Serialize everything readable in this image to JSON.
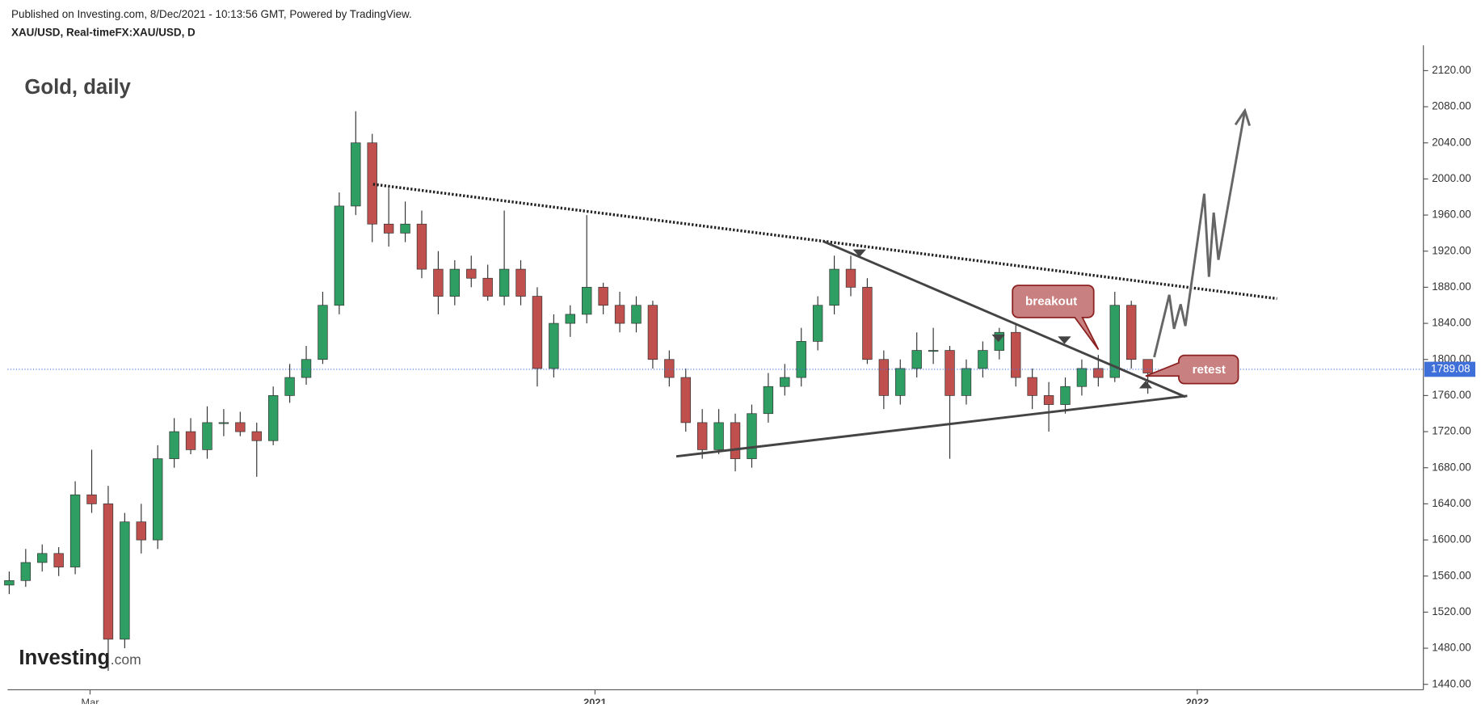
{
  "header": {
    "published": "Published on Investing.com, 8/Dec/2021 - 10:13:56 GMT, Powered by TradingView.",
    "symbol": "XAU/USD, Real-timeFX:XAU/USD, D"
  },
  "logo": {
    "brand": "Investing",
    "suffix": ".com"
  },
  "chart_data": {
    "type": "candlestick",
    "title": "Gold, daily",
    "up_color": "#2e9e62",
    "down_color": "#c0504d",
    "x": [
      -355,
      -345,
      -335,
      -325,
      -315,
      -305,
      -295,
      -285,
      -275,
      -265,
      -255,
      -245,
      -235,
      -225,
      -215,
      -205,
      -195,
      -185,
      -175,
      -165,
      -155,
      -145,
      -135,
      -125,
      -115,
      -105,
      -95,
      -85,
      -75,
      -65,
      -55,
      -45,
      -35,
      -25,
      -15,
      -5,
      5,
      15,
      25,
      35,
      45,
      55,
      65,
      75,
      85,
      95,
      105,
      115,
      125,
      135,
      145,
      155,
      165,
      175,
      185,
      195,
      205,
      215,
      225,
      235,
      245,
      255,
      265,
      275,
      285,
      295,
      305,
      315,
      325,
      335
    ],
    "open": [
      1550,
      1555,
      1575,
      1585,
      1570,
      1650,
      1640,
      1490,
      1620,
      1600,
      1690,
      1720,
      1700,
      1730,
      1730,
      1720,
      1710,
      1760,
      1780,
      1800,
      1860,
      1970,
      2040,
      1950,
      1940,
      1950,
      1900,
      1870,
      1900,
      1890,
      1870,
      1900,
      1870,
      1790,
      1840,
      1850,
      1880,
      1860,
      1840,
      1860,
      1800,
      1780,
      1730,
      1700,
      1730,
      1690,
      1740,
      1770,
      1780,
      1820,
      1860,
      1900,
      1880,
      1800,
      1760,
      1790,
      1810,
      1810,
      1760,
      1790,
      1810,
      1830,
      1780,
      1760,
      1750,
      1770,
      1790,
      1780,
      1860,
      1800
    ],
    "high": [
      1565,
      1590,
      1595,
      1592,
      1665,
      1700,
      1660,
      1630,
      1640,
      1705,
      1735,
      1735,
      1748,
      1745,
      1742,
      1730,
      1770,
      1795,
      1815,
      1875,
      1985,
      2075,
      2050,
      1990,
      1975,
      1965,
      1920,
      1910,
      1915,
      1905,
      1965,
      1910,
      1880,
      1850,
      1860,
      1960,
      1885,
      1875,
      1870,
      1865,
      1810,
      1790,
      1745,
      1745,
      1740,
      1750,
      1785,
      1795,
      1835,
      1870,
      1915,
      1915,
      1890,
      1810,
      1800,
      1830,
      1835,
      1815,
      1800,
      1820,
      1835,
      1840,
      1790,
      1775,
      1780,
      1800,
      1805,
      1875,
      1865,
      1800
    ],
    "low": [
      1540,
      1548,
      1565,
      1560,
      1562,
      1630,
      1455,
      1480,
      1585,
      1590,
      1680,
      1695,
      1690,
      1715,
      1715,
      1670,
      1705,
      1752,
      1772,
      1795,
      1850,
      1960,
      1930,
      1925,
      1930,
      1890,
      1850,
      1860,
      1880,
      1865,
      1860,
      1860,
      1770,
      1780,
      1825,
      1840,
      1850,
      1830,
      1830,
      1790,
      1770,
      1720,
      1690,
      1695,
      1676,
      1680,
      1730,
      1760,
      1770,
      1810,
      1850,
      1870,
      1795,
      1745,
      1750,
      1780,
      1795,
      1690,
      1750,
      1780,
      1800,
      1770,
      1745,
      1720,
      1740,
      1760,
      1770,
      1775,
      1790,
      1762
    ],
    "close": [
      1555,
      1575,
      1585,
      1570,
      1650,
      1640,
      1490,
      1620,
      1600,
      1690,
      1720,
      1700,
      1730,
      1730,
      1720,
      1710,
      1760,
      1780,
      1800,
      1860,
      1970,
      2040,
      1950,
      1940,
      1950,
      1900,
      1870,
      1900,
      1890,
      1870,
      1900,
      1870,
      1790,
      1840,
      1850,
      1880,
      1860,
      1840,
      1860,
      1800,
      1780,
      1730,
      1700,
      1730,
      1690,
      1740,
      1770,
      1780,
      1820,
      1860,
      1900,
      1880,
      1800,
      1760,
      1790,
      1810,
      1810,
      1760,
      1790,
      1810,
      1830,
      1780,
      1760,
      1750,
      1770,
      1790,
      1780,
      1860,
      1800,
      1785
    ],
    "xlim": [
      -356,
      502
    ],
    "xticks": [
      {
        "value": -306,
        "label": "Mar"
      },
      {
        "value": 0,
        "label": "2021"
      },
      {
        "value": 365,
        "label": "2022"
      }
    ],
    "ylim": [
      1434,
      2148
    ],
    "yticks": [
      {
        "value": 1440,
        "label": "1440.00"
      },
      {
        "value": 1480,
        "label": "1480.00"
      },
      {
        "value": 1520,
        "label": "1520.00"
      },
      {
        "value": 1560,
        "label": "1560.00"
      },
      {
        "value": 1600,
        "label": "1600.00"
      },
      {
        "value": 1640,
        "label": "1640.00"
      },
      {
        "value": 1680,
        "label": "1680.00"
      },
      {
        "value": 1720,
        "label": "1720.00"
      },
      {
        "value": 1760,
        "label": "1760.00"
      },
      {
        "value": 1800,
        "label": "1800.00"
      },
      {
        "value": 1840,
        "label": "1840.00"
      },
      {
        "value": 1880,
        "label": "1880.00"
      },
      {
        "value": 1920,
        "label": "1920.00"
      },
      {
        "value": 1960,
        "label": "1960.00"
      },
      {
        "value": 2000,
        "label": "2000.00"
      },
      {
        "value": 2040,
        "label": "2040.00"
      },
      {
        "value": 2080,
        "label": "2080.00"
      },
      {
        "value": 2120,
        "label": "2120.00"
      }
    ],
    "last_price": 1789.08,
    "last_price_color": "#3f6fd8",
    "annotations": [
      "breakout",
      "retest"
    ]
  }
}
